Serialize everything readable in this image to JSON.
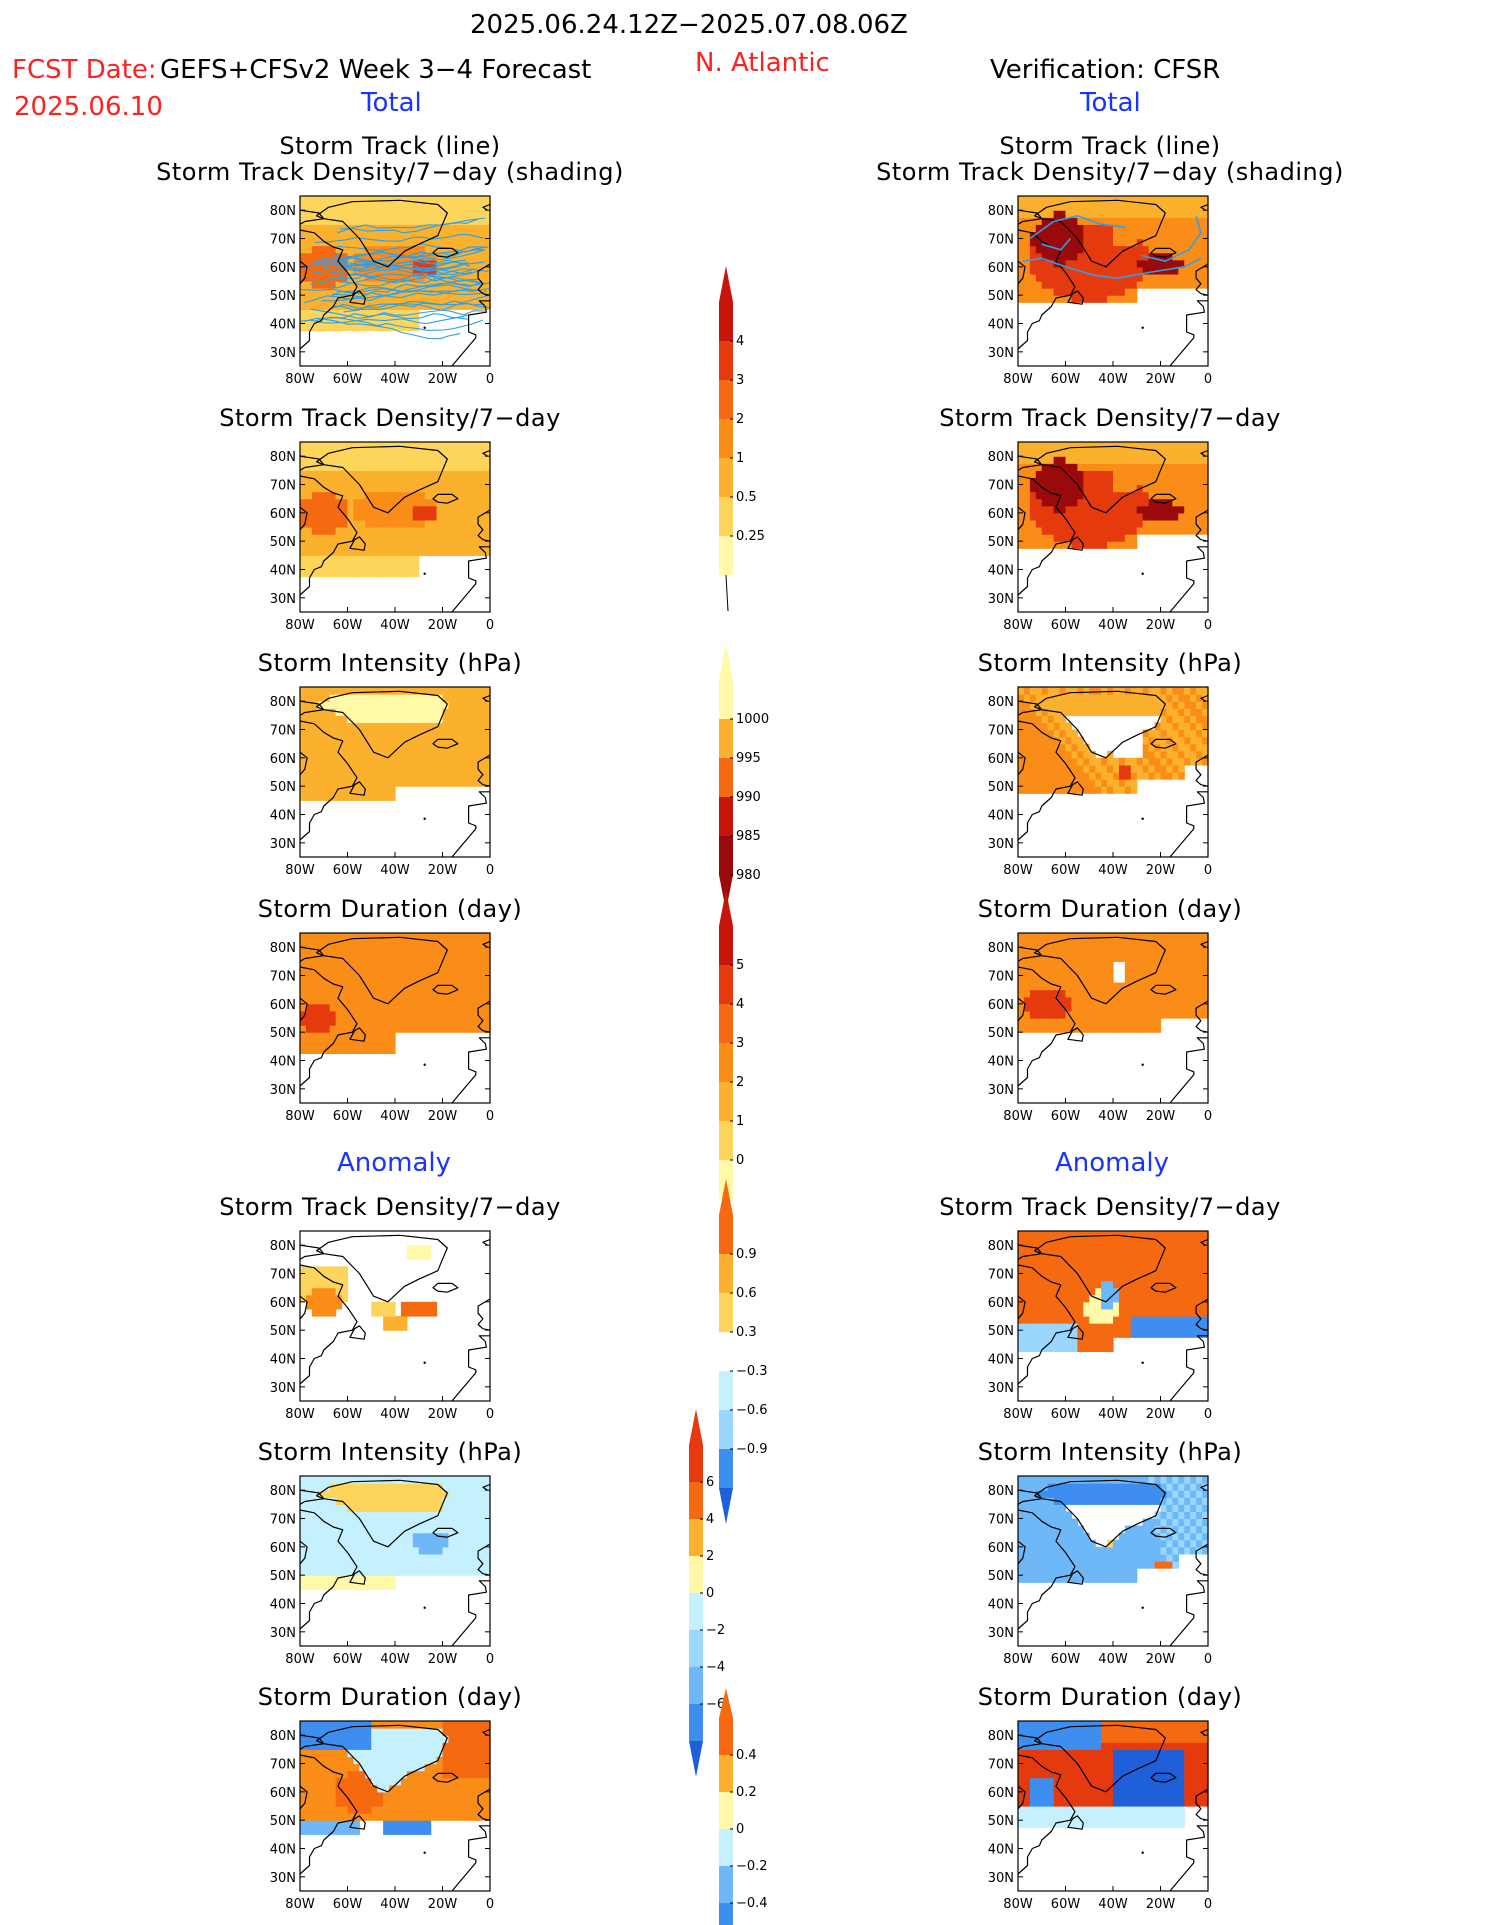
{
  "header": {
    "period": "2025.06.24.12Z−2025.07.08.06Z",
    "fcst_label": "FCST Date:",
    "fcst_date": "2025.06.10",
    "model": "GEFS+CFSv2 Week 3−4 Forecast",
    "region": "N. Atlantic",
    "verification": "Verification: CFSR",
    "left_total": "Total",
    "right_total": "Total",
    "left_anomaly": "Anomaly",
    "right_anomaly": "Anomaly"
  },
  "titles": {
    "track_line": "Storm Track (line)",
    "track_shading": "Storm Track Density/7−day (shading)",
    "density": "Storm Track Density/7−day",
    "intensity": "Storm Intensity (hPa)",
    "duration": "Storm Duration (day)"
  },
  "axes": {
    "lat_labels": [
      "80N",
      "70N",
      "60N",
      "50N",
      "40N",
      "30N"
    ],
    "lon_labels": [
      "80W",
      "60W",
      "40W",
      "20W",
      "0"
    ]
  },
  "colors": {
    "pos": [
      "#fff9a8",
      "#fcd55a",
      "#fbb12d",
      "#f98d18",
      "#f56a10",
      "#e53a0e",
      "#c8150c",
      "#9a0a0a"
    ],
    "neg": [
      "#c5f1ff",
      "#9ad7ff",
      "#6fb8f8",
      "#3e8ef0",
      "#1f5fd8"
    ],
    "track_line": "#2f9fe8"
  },
  "chart_data": [
    {
      "type": "heatmap",
      "name": "forecast_track_density_with_tracks",
      "legend_levels": [
        "0.25",
        "0.5",
        "1",
        "2",
        "3",
        "4"
      ]
    },
    {
      "type": "heatmap",
      "name": "cfsr_track_density_with_tracks",
      "legend_levels": [
        "0.25",
        "0.5",
        "1",
        "2",
        "3",
        "4"
      ]
    },
    {
      "type": "heatmap",
      "name": "forecast_track_density",
      "legend_levels": [
        "0.25",
        "0.5",
        "1",
        "2",
        "3",
        "4"
      ]
    },
    {
      "type": "heatmap",
      "name": "cfsr_track_density",
      "legend_levels": [
        "0.25",
        "0.5",
        "1",
        "2",
        "3",
        "4"
      ]
    },
    {
      "type": "heatmap",
      "name": "forecast_intensity",
      "legend_levels": [
        "1000",
        "995",
        "990",
        "985",
        "980"
      ]
    },
    {
      "type": "heatmap",
      "name": "cfsr_intensity",
      "legend_levels": [
        "1000",
        "995",
        "990",
        "985",
        "980"
      ]
    },
    {
      "type": "heatmap",
      "name": "forecast_duration",
      "legend_levels": [
        "0",
        "1",
        "2",
        "3",
        "4",
        "5"
      ]
    },
    {
      "type": "heatmap",
      "name": "cfsr_duration",
      "legend_levels": [
        "0",
        "1",
        "2",
        "3",
        "4",
        "5"
      ]
    },
    {
      "type": "heatmap",
      "name": "forecast_density_anomaly",
      "legend_levels": [
        "0.9",
        "0.6",
        "0.3",
        "−0.3",
        "−0.6",
        "−0.9"
      ]
    },
    {
      "type": "heatmap",
      "name": "cfsr_density_anomaly",
      "legend_levels": [
        "0.9",
        "0.6",
        "0.3",
        "−0.3",
        "−0.6",
        "−0.9"
      ]
    },
    {
      "type": "heatmap",
      "name": "forecast_intensity_anomaly",
      "legend_levels": [
        "6",
        "4",
        "2",
        "0",
        "−2",
        "−4",
        "−6"
      ]
    },
    {
      "type": "heatmap",
      "name": "cfsr_intensity_anomaly",
      "legend_levels": [
        "6",
        "4",
        "2",
        "0",
        "−2",
        "−4",
        "−6"
      ]
    },
    {
      "type": "heatmap",
      "name": "forecast_duration_anomaly",
      "legend_levels": [
        "0.4",
        "0.2",
        "0",
        "−0.2",
        "−0.4"
      ]
    },
    {
      "type": "heatmap",
      "name": "cfsr_duration_anomaly",
      "legend_levels": [
        "0.4",
        "0.2",
        "0",
        "−0.2",
        "−0.4"
      ]
    }
  ],
  "colorbars": {
    "density": [
      "4",
      "3",
      "2",
      "1",
      "0.5",
      "0.25"
    ],
    "intensity": [
      "1000",
      "995",
      "990",
      "985",
      "980"
    ],
    "duration": [
      "5",
      "4",
      "3",
      "2",
      "1",
      "0"
    ],
    "density_anom": [
      "0.9",
      "0.6",
      "0.3",
      "−0.3",
      "−0.6",
      "−0.9"
    ],
    "intensity_anom": [
      "6",
      "4",
      "2",
      "0",
      "−2",
      "−4",
      "−6"
    ],
    "duration_anom": [
      "0.4",
      "0.2",
      "0",
      "−0.2",
      "−0.4"
    ]
  }
}
